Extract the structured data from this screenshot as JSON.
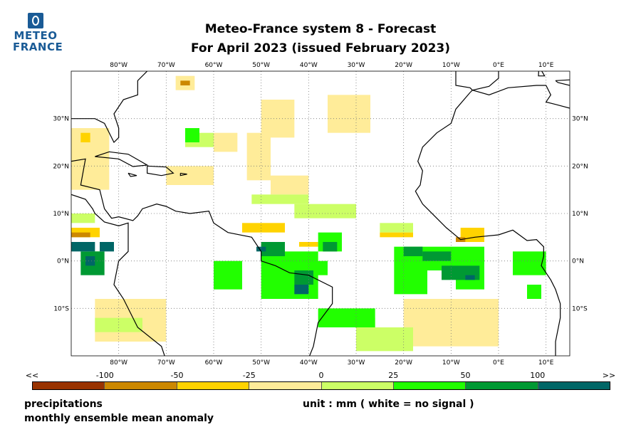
{
  "logo": {
    "line1": "METEO",
    "line2": "FRANCE"
  },
  "title": {
    "line1": "Meteo-France system 8  -  Forecast",
    "line2": "For April 2023      (issued February 2023)"
  },
  "map": {
    "lon_range": [
      -90,
      15
    ],
    "lat_range": [
      -20,
      40
    ],
    "lon_ticks": [
      {
        "v": -80,
        "label": "80°W"
      },
      {
        "v": -70,
        "label": "70°W"
      },
      {
        "v": -60,
        "label": "60°W"
      },
      {
        "v": -50,
        "label": "50°W"
      },
      {
        "v": -40,
        "label": "40°W"
      },
      {
        "v": -30,
        "label": "30°W"
      },
      {
        "v": -20,
        "label": "20°W"
      },
      {
        "v": -10,
        "label": "10°W"
      },
      {
        "v": 0,
        "label": "0°E"
      },
      {
        "v": 10,
        "label": "10°E"
      }
    ],
    "lat_ticks": [
      {
        "v": 30,
        "label": "30°N"
      },
      {
        "v": 20,
        "label": "20°N"
      },
      {
        "v": 10,
        "label": "10°N"
      },
      {
        "v": 0,
        "label": "0°N"
      },
      {
        "v": -10,
        "label": "10°S"
      }
    ],
    "anomaly_regions": [
      [
        -90,
        15,
        -82,
        28,
        3
      ],
      [
        -50,
        26,
        -43,
        34,
        3
      ],
      [
        -53,
        17,
        -48,
        27,
        3
      ],
      [
        -36,
        27,
        -27,
        35,
        3
      ],
      [
        -60,
        23,
        -55,
        27,
        3
      ],
      [
        -85,
        -17,
        -70,
        -8,
        3
      ],
      [
        -20,
        -18,
        0,
        -8,
        3
      ],
      [
        -48,
        14,
        -40,
        18,
        3
      ],
      [
        -70,
        16,
        -60,
        20,
        3
      ],
      [
        -68,
        36,
        -64,
        39,
        3
      ],
      [
        -43,
        9,
        -30,
        12,
        4
      ],
      [
        -52,
        12,
        -40,
        14,
        4
      ],
      [
        -90,
        8,
        -85,
        10,
        4
      ],
      [
        -35,
        -14,
        -26,
        -12,
        4
      ],
      [
        -30,
        -19,
        -18,
        -14,
        4
      ],
      [
        -66,
        24,
        -60,
        27,
        4
      ],
      [
        -85,
        -15,
        -75,
        -12,
        4
      ],
      [
        -25,
        6,
        -18,
        8,
        4
      ],
      [
        -90,
        5,
        -84,
        7,
        2
      ],
      [
        -54,
        6,
        -45,
        8,
        2
      ],
      [
        -25,
        5,
        -18,
        6,
        2
      ],
      [
        -8,
        4,
        -3,
        7,
        2
      ],
      [
        -88,
        25,
        -86,
        27,
        2
      ],
      [
        -42,
        3,
        -38,
        4,
        2
      ],
      [
        -90,
        5,
        -86,
        6,
        1
      ],
      [
        -9,
        4,
        -7,
        5,
        1
      ],
      [
        -67,
        37,
        -65,
        38,
        1
      ],
      [
        -66,
        25,
        -63,
        28,
        5
      ],
      [
        -22,
        -7,
        -15,
        3,
        5
      ],
      [
        -15,
        -2,
        -3,
        3,
        5
      ],
      [
        -50,
        -8,
        -38,
        2,
        5
      ],
      [
        -38,
        -14,
        -26,
        -10,
        5
      ],
      [
        -60,
        -6,
        -54,
        0,
        5
      ],
      [
        -38,
        2,
        -33,
        6,
        5
      ],
      [
        -86,
        -2,
        -84,
        2,
        5
      ],
      [
        -9,
        -6,
        -3,
        -2,
        5
      ],
      [
        3,
        -3,
        10,
        2,
        5
      ],
      [
        6,
        -8,
        9,
        -5,
        5
      ],
      [
        -44,
        -3,
        -36,
        0,
        5
      ],
      [
        -12,
        -2,
        -5,
        0,
        5
      ],
      [
        -88,
        -3,
        -83,
        2,
        6
      ],
      [
        -12,
        -4,
        -4,
        -1,
        6
      ],
      [
        -50,
        1,
        -45,
        4,
        6
      ],
      [
        -43,
        -5,
        -39,
        -2,
        6
      ],
      [
        -37,
        2,
        -34,
        4,
        6
      ],
      [
        -20,
        1,
        -16,
        3,
        6
      ],
      [
        -16,
        0,
        -10,
        2,
        6
      ],
      [
        -90,
        2,
        -85,
        4,
        7
      ],
      [
        -84,
        2,
        -81,
        4,
        7
      ],
      [
        -43,
        -7,
        -40,
        -5,
        7
      ],
      [
        -87,
        -1,
        -85,
        1,
        7
      ],
      [
        -51,
        2,
        -49,
        3,
        7
      ],
      [
        -7,
        -4,
        -5,
        -3,
        7
      ]
    ]
  },
  "colorbar": {
    "colors": [
      "#993300",
      "#cc8800",
      "#ffd300",
      "#ffec99",
      "#ccff66",
      "#22ff00",
      "#009933",
      "#006666"
    ],
    "labels": [
      "<<",
      "-100",
      "-50",
      "-25",
      "0",
      "25",
      "50",
      "100",
      ">>"
    ]
  },
  "footer": {
    "line1": "precipitations",
    "line2": "monthly ensemble mean anomaly",
    "unit": "unit : mm  ( white = no signal )"
  }
}
